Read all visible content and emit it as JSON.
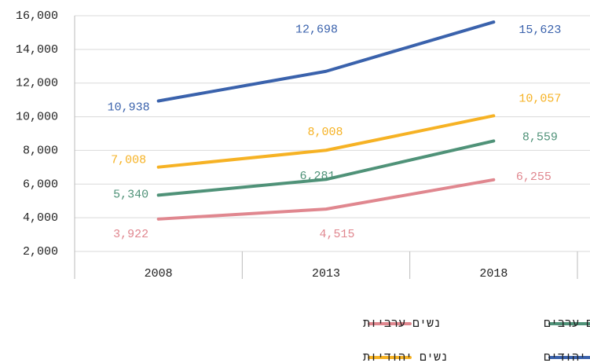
{
  "chart_data": {
    "type": "line",
    "categories": [
      "2008",
      "2013",
      "2018"
    ],
    "series": [
      {
        "name": "גברים יהודים",
        "color": "#3a62ac",
        "values": [
          10938,
          12698,
          15623
        ],
        "value_labels": [
          "10,938",
          "12,698",
          "15,623"
        ]
      },
      {
        "name": "נשים יהודיות",
        "color": "#f6b224",
        "values": [
          7008,
          8008,
          10057
        ],
        "value_labels": [
          "7,008",
          "8,008",
          "10,057"
        ]
      },
      {
        "name": "גברים ערבים",
        "color": "#4f9278",
        "values": [
          5340,
          6281,
          8559
        ],
        "value_labels": [
          "5,340",
          "6,281",
          "8,559"
        ]
      },
      {
        "name": "נשים ערביות",
        "color": "#e0878f",
        "values": [
          3922,
          4515,
          6255
        ],
        "value_labels": [
          "3,922",
          "4,515",
          "6,255"
        ]
      }
    ],
    "ylim": [
      2000,
      16000
    ],
    "yticks": [
      {
        "value": 2000,
        "label": "2,000"
      },
      {
        "value": 4000,
        "label": "4,000"
      },
      {
        "value": 6000,
        "label": "6,000"
      },
      {
        "value": 8000,
        "label": "8,000"
      },
      {
        "value": 10000,
        "label": "10,000"
      },
      {
        "value": 12000,
        "label": "12,000"
      },
      {
        "value": 14000,
        "label": "14,000"
      },
      {
        "value": 16000,
        "label": "16,000"
      }
    ],
    "grid": true
  }
}
